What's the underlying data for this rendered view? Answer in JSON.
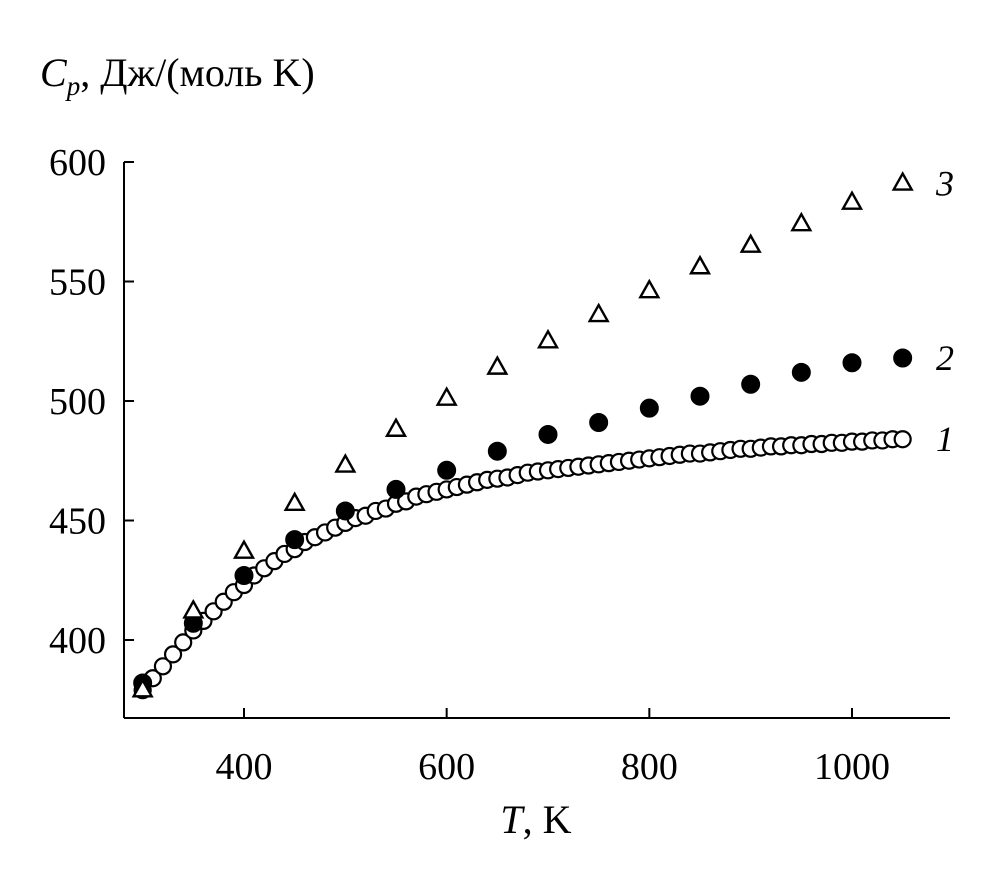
{
  "chart_data": {
    "type": "scatter",
    "title": "",
    "ylabel": {
      "symbol": "C",
      "subscript": "p",
      "unit": ", Дж/(моль K)"
    },
    "xlabel": {
      "symbol": "T",
      "unit": ", K"
    },
    "xlim": [
      290,
      1090
    ],
    "ylim": [
      368,
      600
    ],
    "xticks": [
      400,
      600,
      800,
      1000
    ],
    "yticks": [
      400,
      450,
      500,
      550,
      600
    ],
    "grid": false,
    "series": [
      {
        "name": "1",
        "marker": "open-circle",
        "x": [
          300,
          310,
          320,
          330,
          340,
          350,
          360,
          370,
          380,
          390,
          400,
          410,
          420,
          430,
          440,
          450,
          460,
          470,
          480,
          490,
          500,
          510,
          520,
          530,
          540,
          550,
          560,
          570,
          580,
          590,
          600,
          610,
          620,
          630,
          640,
          650,
          660,
          670,
          680,
          690,
          700,
          710,
          720,
          730,
          740,
          750,
          760,
          770,
          780,
          790,
          800,
          810,
          820,
          830,
          840,
          850,
          860,
          870,
          880,
          890,
          900,
          910,
          920,
          930,
          940,
          950,
          960,
          970,
          980,
          990,
          1000,
          1010,
          1020,
          1030,
          1040,
          1050
        ],
        "y": [
          379,
          384,
          389,
          394,
          399,
          404,
          408,
          412,
          416,
          420,
          423,
          427,
          430,
          433,
          436,
          438,
          441,
          443,
          445,
          447,
          449,
          451,
          452,
          454,
          455,
          457,
          458,
          460,
          461,
          462,
          463,
          464,
          465,
          466,
          467,
          467.5,
          468,
          469,
          470,
          470.5,
          471,
          471.5,
          472,
          472.5,
          473,
          473.5,
          474,
          474.5,
          475,
          475.5,
          476,
          476.5,
          477,
          477.5,
          478,
          478,
          478.5,
          479,
          479.5,
          480,
          480,
          480.5,
          481,
          481,
          481.5,
          481.5,
          482,
          482,
          482.5,
          482.5,
          483,
          483,
          483.5,
          483.5,
          484,
          484
        ]
      },
      {
        "name": "2",
        "marker": "filled-circle",
        "x": [
          300,
          350,
          400,
          450,
          500,
          550,
          600,
          650,
          700,
          750,
          800,
          850,
          900,
          950,
          1000,
          1050
        ],
        "y": [
          382,
          407,
          427,
          442,
          454,
          463,
          471,
          479,
          486,
          491,
          497,
          502,
          507,
          512,
          516,
          518
        ]
      },
      {
        "name": "3",
        "marker": "open-triangle",
        "x": [
          300,
          350,
          400,
          450,
          500,
          550,
          600,
          650,
          700,
          750,
          800,
          850,
          900,
          950,
          1000,
          1050
        ],
        "y": [
          379,
          412,
          437,
          457,
          473,
          488,
          501,
          514,
          525,
          536,
          546,
          556,
          565,
          574,
          583,
          591
        ]
      }
    ]
  }
}
